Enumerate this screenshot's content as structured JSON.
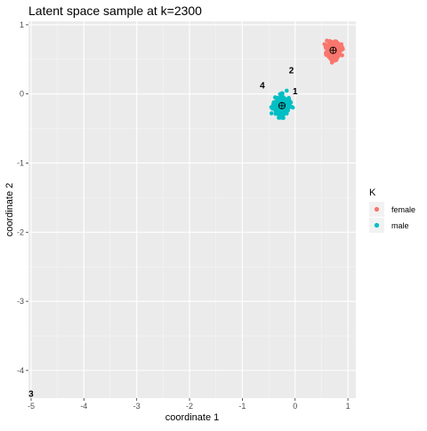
{
  "chart_data": {
    "type": "scatter",
    "title": "Latent space sample at k=2300",
    "xlabel": "coordinate 1",
    "ylabel": "coordinate 2",
    "xlim": [
      -5.05,
      1.15
    ],
    "ylim": [
      -4.4,
      1.05
    ],
    "x_ticks": [
      "-5",
      "-4",
      "-3",
      "-2",
      "-1",
      "0",
      "1"
    ],
    "y_ticks": [
      "1",
      "0",
      "-1",
      "-2",
      "-3",
      "-4"
    ],
    "panel_background": "#ebebeb",
    "grid": true,
    "grid_color": "#ffffff",
    "legend": {
      "title": "K",
      "position": "right",
      "entries": [
        {
          "label": "female",
          "color": "#f8766d"
        },
        {
          "label": "male",
          "color": "#00bfc4"
        }
      ]
    },
    "series": [
      {
        "name": "female",
        "color": "#f8766d",
        "center": [
          0.72,
          0.63
        ],
        "spread": 0.07
      },
      {
        "name": "male",
        "color": "#00bfc4",
        "center": [
          -0.25,
          -0.17
        ],
        "spread": 0.09
      }
    ],
    "centroid_markers": [
      {
        "group": "female",
        "x": 0.72,
        "y": 0.63
      },
      {
        "group": "male",
        "x": -0.25,
        "y": -0.17
      }
    ],
    "annotations": [
      {
        "text": "1",
        "x": 0.0,
        "y": 0.05
      },
      {
        "text": "2",
        "x": -0.07,
        "y": 0.35
      },
      {
        "text": "4",
        "x": -0.62,
        "y": 0.13
      },
      {
        "text": "3",
        "x": -5.0,
        "y": -4.33
      }
    ]
  }
}
